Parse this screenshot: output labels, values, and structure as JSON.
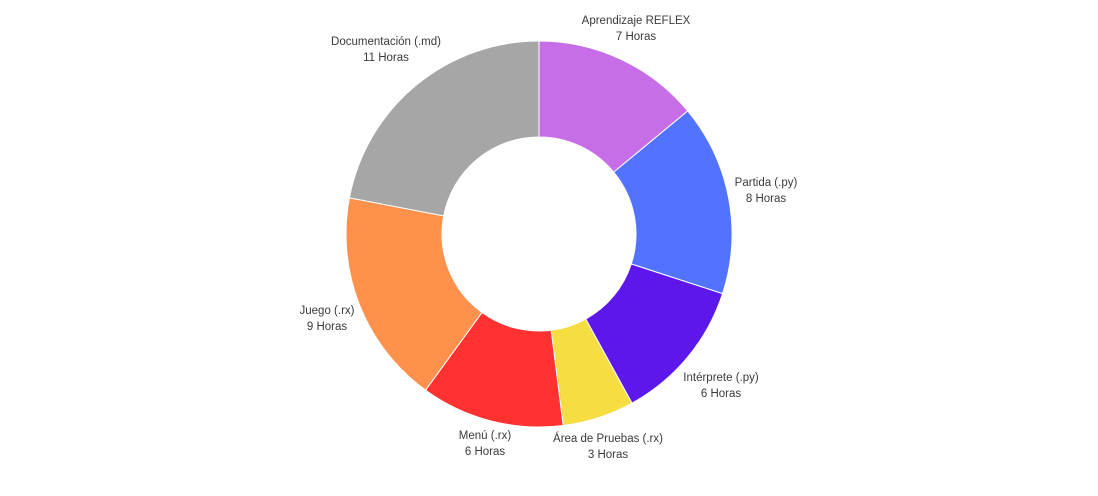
{
  "chart_data": {
    "type": "pie",
    "variant": "donut",
    "title": "",
    "unit_suffix": "Horas",
    "legend": "none",
    "slices": [
      {
        "label": "Aprendizaje REFLEX",
        "value": 7,
        "value_text": "7 Horas",
        "color": "#C86DE8"
      },
      {
        "label": "Partida (.py)",
        "value": 8,
        "value_text": "8 Horas",
        "color": "#5273FF"
      },
      {
        "label": "Intérprete (.py)",
        "value": 6,
        "value_text": "6 Horas",
        "color": "#5E17EB"
      },
      {
        "label": "Área de Pruebas (.rx)",
        "value": 3,
        "value_text": "3 Horas",
        "color": "#F6DD42"
      },
      {
        "label": "Menú (.rx)",
        "value": 6,
        "value_text": "6 Horas",
        "color": "#FF3131"
      },
      {
        "label": "Juego (.rx)",
        "value": 9,
        "value_text": "9 Horas",
        "color": "#FF914D"
      },
      {
        "label": "Documentación (.md)",
        "value": 11,
        "value_text": "11 Horas",
        "color": "#A6A6A6"
      }
    ]
  }
}
